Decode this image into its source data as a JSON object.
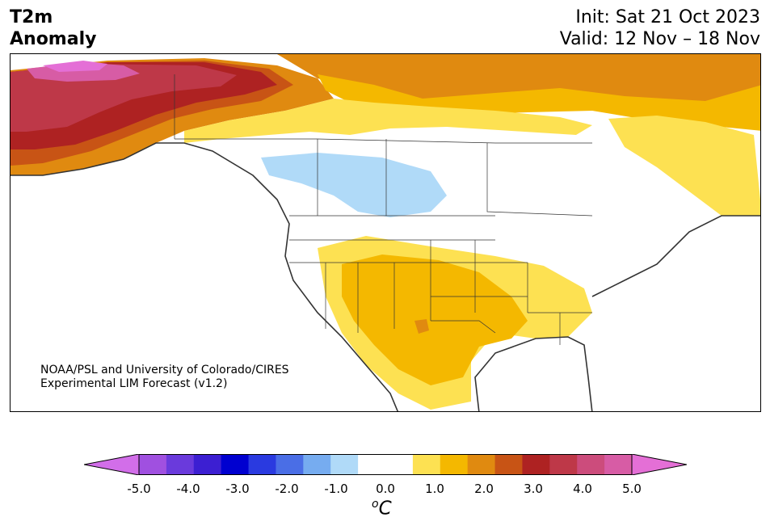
{
  "title": {
    "line1": "T2m",
    "line2": "Anomaly"
  },
  "init": "Init: Sat 21 Oct 2023",
  "valid": "Valid: 12 Nov – 18 Nov",
  "credit": {
    "line1": "NOAA/PSL and University of Colorado/CIRES",
    "line2": "Experimental LIM Forecast (v1.2)"
  },
  "colorbar": {
    "colors": [
      "#d26ee9",
      "#a050e0",
      "#6a3adc",
      "#3c1fd2",
      "#0000d0",
      "#2a3ae0",
      "#4a6ee6",
      "#76acf0",
      "#b0daf8",
      "#ffffff",
      "#ffffff",
      "#fde152",
      "#f4b800",
      "#e08a10",
      "#c85415",
      "#ae2222",
      "#be3848",
      "#cc4c7c",
      "#d75ca5",
      "#e46fd6"
    ],
    "ticks": [
      "-5.0",
      "-4.0",
      "-3.0",
      "-2.0",
      "-1.0",
      "0.0",
      "1.0",
      "2.0",
      "3.0",
      "4.0",
      "5.0"
    ],
    "tick_values": [
      -5,
      -4,
      -3,
      -2,
      -1,
      0,
      1,
      2,
      3,
      4,
      5
    ],
    "unit_base": "C",
    "unit_sup": "o"
  }
}
